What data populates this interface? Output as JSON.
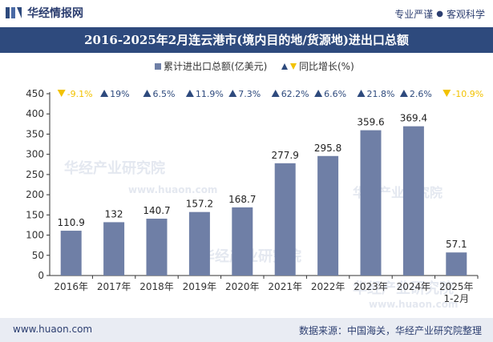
{
  "header": {
    "brand": "华经情报网",
    "tagline_1": "专业严谨",
    "tagline_2": "客观科学"
  },
  "title": "2016-2025年2月连云港市(境内目的地/货源地)进出口总额",
  "footer": {
    "website": "www.huaon.com",
    "source": "数据来源：中国海关，华经产业研究院整理"
  },
  "watermarks": [
    "华经产业研究院",
    "www.huaon.com"
  ],
  "colors": {
    "bar": "#6f7fa6",
    "growth_up": "#2e4a7d",
    "growth_down": "#f2c200",
    "title_bg": "#2e4a7d",
    "footer_bg": "#e9ecf3"
  },
  "chart_data": {
    "type": "bar",
    "categories": [
      "2016年",
      "2017年",
      "2018年",
      "2019年",
      "2020年",
      "2021年",
      "2022年",
      "2023年",
      "2024年",
      "2025年\n1-2月"
    ],
    "series": [
      {
        "name": "累计进出口总额(亿美元)",
        "values": [
          110.9,
          132,
          140.7,
          157.2,
          168.7,
          277.9,
          295.8,
          359.6,
          369.4,
          57.1
        ],
        "value_labels": [
          "110.9",
          "132",
          "140.7",
          "157.2",
          "168.7",
          "277.9",
          "295.8",
          "359.6",
          "369.4",
          "57.1"
        ]
      },
      {
        "name": "同比增长(%)",
        "values": [
          -9.1,
          19,
          6.5,
          11.9,
          7.3,
          62.2,
          6.6,
          21.8,
          2.6,
          -10.9
        ],
        "value_labels": [
          "-9.1%",
          "19%",
          "6.5%",
          "11.9%",
          "7.3%",
          "62.2%",
          "6.6%",
          "21.8%",
          "2.6%",
          "-10.9%"
        ]
      }
    ],
    "ylim": [
      0,
      450
    ],
    "yticks": [
      "0",
      "50",
      "100",
      "150",
      "200",
      "250",
      "300",
      "350",
      "400",
      "450"
    ],
    "legend_position": "top-center",
    "grid": false
  }
}
